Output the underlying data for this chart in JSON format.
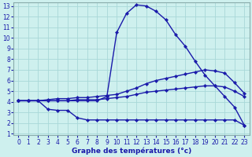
{
  "title": "Graphe des températures (°c)",
  "bg_color": "#cef0ee",
  "line_color": "#1a1aaa",
  "grid_color": "#a8d8d8",
  "xlim_min": -0.5,
  "xlim_max": 23.5,
  "ylim_min": 0.85,
  "ylim_max": 13.3,
  "xticks": [
    0,
    1,
    2,
    3,
    4,
    5,
    6,
    7,
    8,
    9,
    10,
    11,
    12,
    13,
    14,
    15,
    16,
    17,
    18,
    19,
    20,
    21,
    22,
    23
  ],
  "yticks": [
    1,
    2,
    3,
    4,
    5,
    6,
    7,
    8,
    9,
    10,
    11,
    12,
    13
  ],
  "hours": [
    0,
    1,
    2,
    3,
    4,
    5,
    6,
    7,
    8,
    9,
    10,
    11,
    12,
    13,
    14,
    15,
    16,
    17,
    18,
    19,
    20,
    21,
    22,
    23
  ],
  "line_peak": [
    4.1,
    4.1,
    4.1,
    4.1,
    4.1,
    4.1,
    4.1,
    4.1,
    4.1,
    4.5,
    10.5,
    12.3,
    13.1,
    13.0,
    12.5,
    11.7,
    10.3,
    9.2,
    7.8,
    6.5,
    5.5,
    4.5,
    3.5,
    1.8
  ],
  "line_upper": [
    4.1,
    4.1,
    4.1,
    4.2,
    4.3,
    4.3,
    4.4,
    4.4,
    4.5,
    4.6,
    4.7,
    5.0,
    5.3,
    5.7,
    6.0,
    6.2,
    6.4,
    6.6,
    6.8,
    7.0,
    6.9,
    6.7,
    5.8,
    4.8
  ],
  "line_mid": [
    4.1,
    4.1,
    4.1,
    4.1,
    4.1,
    4.1,
    4.2,
    4.2,
    4.2,
    4.3,
    4.4,
    4.5,
    4.7,
    4.9,
    5.0,
    5.1,
    5.2,
    5.3,
    5.4,
    5.5,
    5.5,
    5.4,
    5.0,
    4.5
  ],
  "line_low": [
    4.1,
    4.1,
    4.1,
    3.3,
    3.2,
    3.2,
    2.5,
    2.3,
    2.3,
    2.3,
    2.3,
    2.3,
    2.3,
    2.3,
    2.3,
    2.3,
    2.3,
    2.3,
    2.3,
    2.3,
    2.3,
    2.3,
    2.3,
    1.8
  ],
  "linewidth": 1.0,
  "markersize": 2.2
}
